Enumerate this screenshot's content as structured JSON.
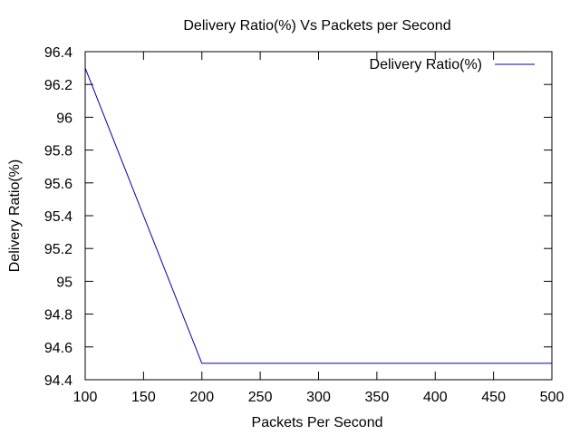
{
  "chart_data": {
    "type": "line",
    "title": "Delivery Ratio(%) Vs Packets per Second",
    "xlabel": "Packets Per Second",
    "ylabel": "Delivery Ratio(%)",
    "xlim": [
      100,
      500
    ],
    "ylim": [
      94.4,
      96.4
    ],
    "xticks": [
      "100",
      "150",
      "200",
      "250",
      "300",
      "350",
      "400",
      "450",
      "500"
    ],
    "yticks": [
      "94.4",
      "94.6",
      "94.8",
      "95",
      "95.2",
      "95.4",
      "95.6",
      "95.8",
      "96",
      "96.2",
      "96.4"
    ],
    "grid": false,
    "legend_position": "top-right",
    "series": [
      {
        "name": "Delivery Ratio(%)",
        "color": "#0000aa",
        "x": [
          100,
          200,
          300,
          400,
          500
        ],
        "y": [
          96.3,
          94.5,
          94.5,
          94.5,
          94.5
        ]
      }
    ]
  }
}
